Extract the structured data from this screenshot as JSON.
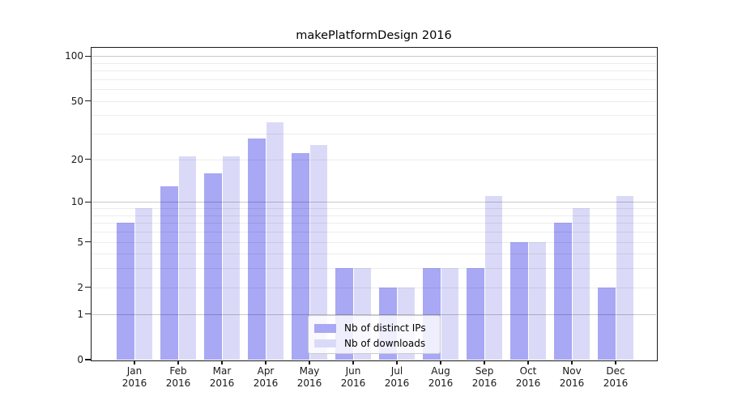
{
  "title": "makePlatformDesign 2016",
  "colors": {
    "background": "#ffffff",
    "bar_distinct_ips": "#a8a8f4",
    "bar_downloads": "#dadaf8",
    "grid_minor": "#ececec",
    "grid_major": "#c9c9c9",
    "spine": "#1a1a1a",
    "legend_border": "#cccccc",
    "legend_background": "#ffffff"
  },
  "chart_data": {
    "type": "bar",
    "title": "makePlatformDesign 2016",
    "yscale": "log10(1+y)",
    "ylim": [
      0,
      114
    ],
    "grid": "on",
    "categories": [
      "Jan",
      "Feb",
      "Mar",
      "Apr",
      "May",
      "Jun",
      "Jul",
      "Aug",
      "Sep",
      "Oct",
      "Nov",
      "Dec"
    ],
    "x_year": "2016",
    "series": [
      {
        "name": "Nb of distinct IPs",
        "color": "#a8a8f4",
        "values": [
          7,
          13,
          16,
          28,
          22,
          3,
          2,
          3,
          3,
          5,
          7,
          2
        ]
      },
      {
        "name": "Nb of downloads",
        "color": "#dadaf8",
        "values": [
          9,
          21,
          21,
          36,
          25,
          3,
          2,
          3,
          11,
          5,
          9,
          11
        ]
      }
    ],
    "ytick_values": [
      100,
      50,
      20,
      10,
      5,
      2,
      1,
      0
    ],
    "ytick_labels": [
      "100",
      "50",
      "20",
      "10",
      "5",
      "2",
      "1",
      "0"
    ],
    "grid_major_values": [
      1,
      10,
      100
    ],
    "grid_minor_values": [
      2,
      3,
      4,
      5,
      6,
      7,
      8,
      9,
      20,
      30,
      40,
      50,
      60,
      70,
      80,
      90
    ],
    "legend": {
      "position": "lower center",
      "entries": [
        "Nb of distinct IPs",
        "Nb of downloads"
      ]
    }
  }
}
